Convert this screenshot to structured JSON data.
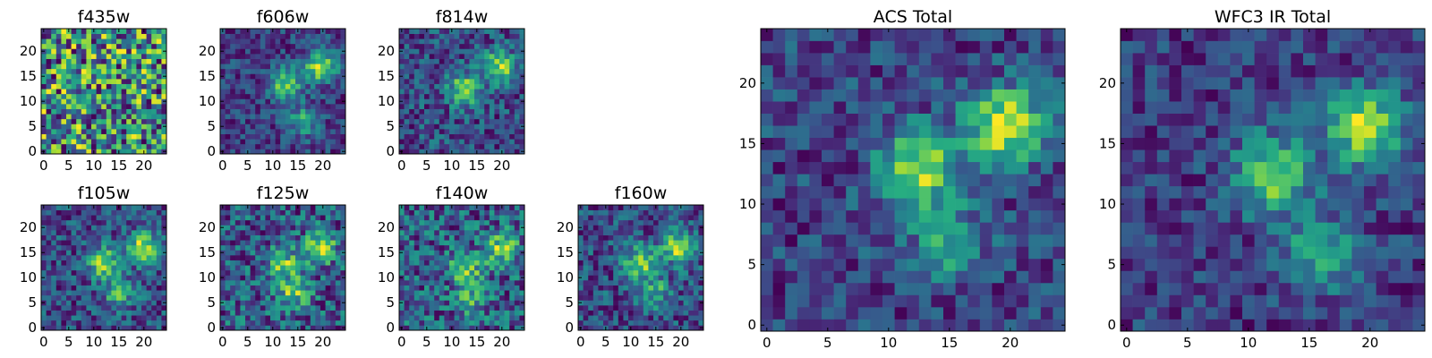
{
  "chart_data": [
    {
      "id": "f435w",
      "type": "heatmap",
      "title": "f435w",
      "colormap": "viridis",
      "grid": false,
      "size": 25,
      "xticks": [
        0,
        5,
        10,
        15,
        20
      ],
      "yticks": [
        0,
        5,
        10,
        15,
        20
      ],
      "xlim": [
        0,
        25
      ],
      "ylim": [
        0,
        25
      ],
      "sources": [],
      "noise": 1.0
    },
    {
      "id": "f606w",
      "type": "heatmap",
      "title": "f606w",
      "colormap": "viridis",
      "grid": false,
      "size": 25,
      "xticks": [
        0,
        5,
        10,
        15,
        20
      ],
      "yticks": [
        0,
        5,
        10,
        15,
        20
      ],
      "xlim": [
        0,
        25
      ],
      "ylim": [
        0,
        25
      ],
      "sources": [
        [
          12.5,
          13.5,
          1.0
        ],
        [
          19.5,
          17,
          1.2
        ],
        [
          16,
          6,
          0.7
        ]
      ],
      "noise": 0.35
    },
    {
      "id": "f814w",
      "type": "heatmap",
      "title": "f814w",
      "colormap": "viridis",
      "grid": false,
      "size": 25,
      "xticks": [
        0,
        5,
        10,
        15,
        20
      ],
      "yticks": [
        0,
        5,
        10,
        15,
        20
      ],
      "xlim": [
        0,
        25
      ],
      "ylim": [
        0,
        25
      ],
      "sources": [
        [
          12.5,
          12.5,
          1.0
        ],
        [
          19.5,
          17,
          1.0
        ]
      ],
      "noise": 0.4
    },
    {
      "id": "f105w",
      "type": "heatmap",
      "title": "f105w",
      "colormap": "viridis",
      "grid": false,
      "size": 25,
      "xticks": [
        0,
        5,
        10,
        15,
        20
      ],
      "yticks": [
        0,
        5,
        10,
        15,
        20
      ],
      "xlim": [
        0,
        25
      ],
      "ylim": [
        0,
        25
      ],
      "sources": [
        [
          12,
          13,
          0.9
        ],
        [
          20,
          16,
          1.0
        ],
        [
          15,
          7,
          0.6
        ]
      ],
      "noise": 0.35
    },
    {
      "id": "f125w",
      "type": "heatmap",
      "title": "f125w",
      "colormap": "viridis",
      "grid": false,
      "size": 25,
      "xticks": [
        0,
        5,
        10,
        15,
        20
      ],
      "yticks": [
        0,
        5,
        10,
        15,
        20
      ],
      "xlim": [
        0,
        25
      ],
      "ylim": [
        0,
        25
      ],
      "sources": [
        [
          12,
          13,
          0.8
        ],
        [
          19.5,
          16,
          0.9
        ],
        [
          14,
          7,
          0.8
        ]
      ],
      "noise": 0.5
    },
    {
      "id": "f140w",
      "type": "heatmap",
      "title": "f140w",
      "colormap": "viridis",
      "grid": false,
      "size": 25,
      "xticks": [
        0,
        5,
        10,
        15,
        20
      ],
      "yticks": [
        0,
        5,
        10,
        15,
        20
      ],
      "xlim": [
        0,
        25
      ],
      "ylim": [
        0,
        25
      ],
      "sources": [
        [
          13,
          12,
          0.8
        ],
        [
          20,
          16,
          0.9
        ],
        [
          14,
          6,
          0.6
        ]
      ],
      "noise": 0.5
    },
    {
      "id": "f160w",
      "type": "heatmap",
      "title": "f160w",
      "colormap": "viridis",
      "grid": false,
      "size": 25,
      "xticks": [
        0,
        5,
        10,
        15,
        20
      ],
      "yticks": [
        0,
        5,
        10,
        15,
        20
      ],
      "xlim": [
        0,
        25
      ],
      "ylim": [
        0,
        25
      ],
      "sources": [
        [
          12,
          13,
          1.0
        ],
        [
          19.5,
          16,
          1.0
        ],
        [
          15,
          7,
          0.6
        ]
      ],
      "noise": 0.4
    },
    {
      "id": "acs-total",
      "type": "heatmap",
      "title": "ACS Total",
      "colormap": "viridis",
      "grid": false,
      "size": 25,
      "xticks": [
        0,
        5,
        10,
        15,
        20
      ],
      "yticks": [
        0,
        5,
        10,
        15,
        20
      ],
      "xlim": [
        0,
        25
      ],
      "ylim": [
        0,
        25
      ],
      "sources": [
        [
          12.5,
          13,
          1.0
        ],
        [
          19.5,
          16.5,
          1.1
        ],
        [
          15,
          7,
          0.55
        ]
      ],
      "noise": 0.3
    },
    {
      "id": "wfc3-ir-total",
      "type": "heatmap",
      "title": "WFC3 IR Total",
      "colormap": "viridis",
      "grid": false,
      "size": 25,
      "xticks": [
        0,
        5,
        10,
        15,
        20
      ],
      "yticks": [
        0,
        5,
        10,
        15,
        20
      ],
      "xlim": [
        0,
        25
      ],
      "ylim": [
        0,
        25
      ],
      "sources": [
        [
          12,
          12.5,
          1.0
        ],
        [
          19.5,
          16.5,
          1.1
        ],
        [
          16,
          6,
          0.7
        ]
      ],
      "noise": 0.3
    }
  ]
}
